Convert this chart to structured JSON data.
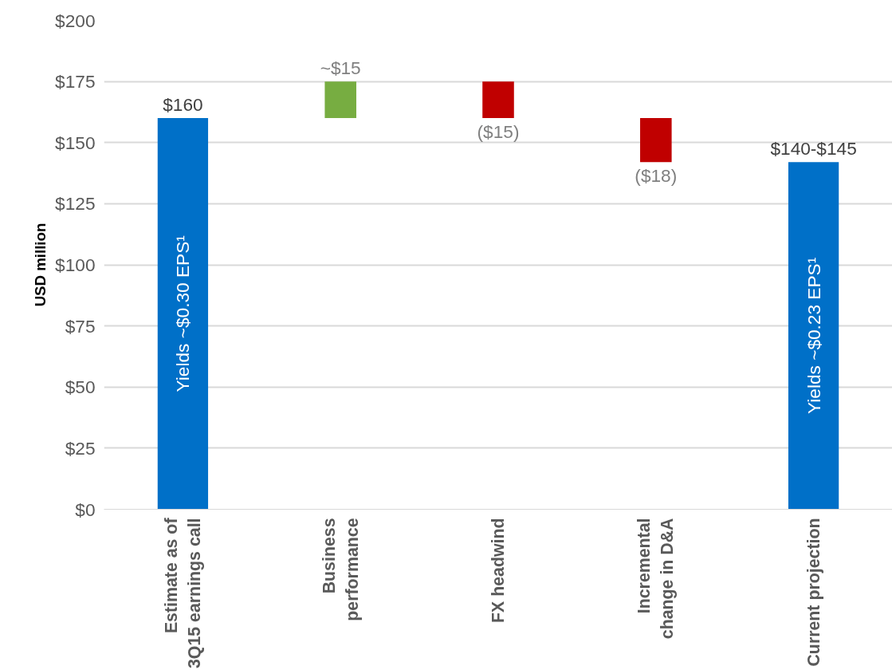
{
  "chart_data": {
    "type": "bar",
    "ylabel": "USD million",
    "categories": [
      "Estimate as of\n3Q15 earnings call",
      "Business\nperformance",
      "FX headwind",
      "Incremental\nchange in D&A",
      "Current projection"
    ],
    "values": [
      160,
      15,
      -15,
      -18,
      142
    ],
    "base": [
      0,
      160,
      175,
      160,
      0
    ],
    "colors": [
      "#0070c8",
      "#77ad41",
      "#c00000",
      "#c00000",
      "#0070c8"
    ],
    "value_labels": [
      "$160",
      "~$15",
      "($15)",
      "($18)",
      "$140-$145"
    ],
    "annotations": [
      "Yields ~$0.30 EPS¹",
      "Yields ~$0.23 EPS¹"
    ],
    "ylim": [
      0,
      200
    ],
    "yticks": [
      {
        "value": 0,
        "label": "$0"
      },
      {
        "value": 25,
        "label": "$25"
      },
      {
        "value": 50,
        "label": "$50"
      },
      {
        "value": 75,
        "label": "$75"
      },
      {
        "value": 100,
        "label": "$100"
      },
      {
        "value": 125,
        "label": "$125"
      },
      {
        "value": 150,
        "label": "$150"
      },
      {
        "value": 175,
        "label": "$175"
      },
      {
        "value": 200,
        "label": "$200"
      }
    ],
    "grid": "y"
  }
}
